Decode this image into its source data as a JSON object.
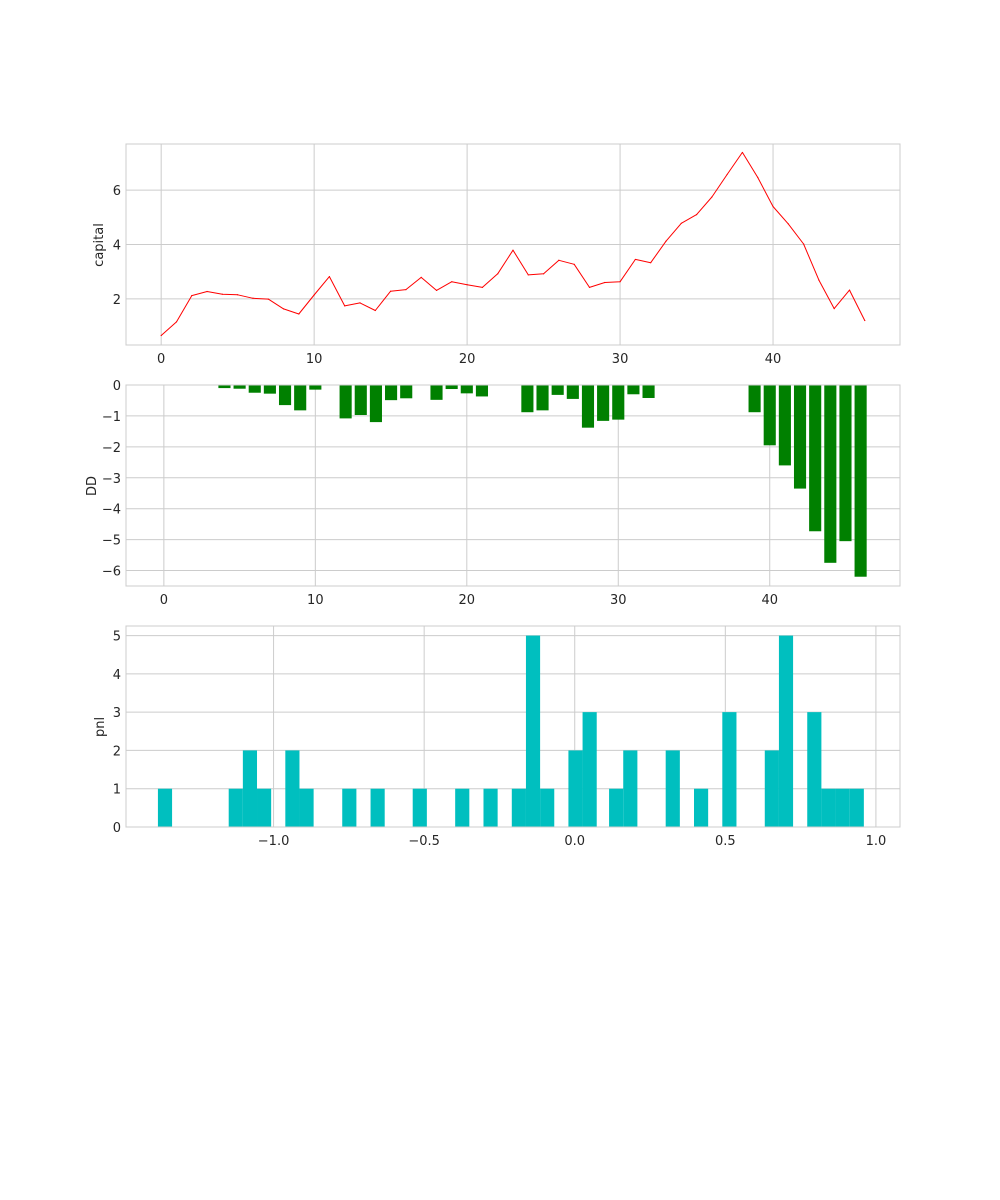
{
  "chart_data": [
    {
      "type": "line",
      "ylabel": "capital",
      "xlim": [
        -2.3,
        48.3
      ],
      "ylim": [
        0.3,
        7.7
      ],
      "xticks": [
        "0",
        "10",
        "20",
        "30",
        "40"
      ],
      "yticks": [
        "2",
        "4",
        "6"
      ],
      "grid": true,
      "color": "#ff0000",
      "x": [
        0,
        1,
        2,
        3,
        4,
        5,
        6,
        7,
        8,
        9,
        10,
        11,
        12,
        13,
        14,
        15,
        16,
        17,
        18,
        19,
        20,
        21,
        22,
        23,
        24,
        25,
        26,
        27,
        28,
        29,
        30,
        31,
        32,
        33,
        34,
        35,
        36,
        37,
        38,
        39,
        40,
        41,
        42,
        43,
        44,
        45,
        46
      ],
      "y": [
        0.65,
        1.15,
        2.12,
        2.27,
        2.17,
        2.15,
        2.02,
        1.99,
        1.63,
        1.44,
        2.14,
        2.82,
        1.74,
        1.85,
        1.57,
        2.28,
        2.34,
        2.79,
        2.31,
        2.63,
        2.52,
        2.42,
        2.92,
        3.79,
        2.88,
        2.92,
        3.42,
        3.27,
        2.42,
        2.6,
        2.63,
        3.45,
        3.33,
        4.12,
        4.78,
        5.1,
        5.75,
        6.58,
        7.39,
        6.47,
        5.4,
        4.76,
        4.02,
        2.69,
        1.64,
        2.32,
        1.2
      ]
    },
    {
      "type": "bar",
      "ylabel": "DD",
      "xlim": [
        -2.5,
        48.6
      ],
      "ylim": [
        -6.5,
        0.0
      ],
      "xticks": [
        "0",
        "10",
        "20",
        "30",
        "40"
      ],
      "yticks": [
        "0",
        "−1",
        "−2",
        "−3",
        "−4",
        "−5",
        "−6"
      ],
      "grid": true,
      "color": "#008000",
      "x": [
        0,
        1,
        2,
        3,
        4,
        5,
        6,
        7,
        8,
        9,
        10,
        11,
        12,
        13,
        14,
        15,
        16,
        17,
        18,
        19,
        20,
        21,
        22,
        23,
        24,
        25,
        26,
        27,
        28,
        29,
        30,
        31,
        32,
        33,
        34,
        35,
        36,
        37,
        38,
        39,
        40,
        41,
        42,
        43,
        44,
        45,
        46
      ],
      "values": [
        0,
        0,
        0,
        0,
        -0.1,
        -0.12,
        -0.25,
        -0.28,
        -0.65,
        -0.82,
        -0.15,
        0,
        -1.08,
        -0.97,
        -1.2,
        -0.49,
        -0.43,
        0,
        -0.48,
        -0.13,
        -0.27,
        -0.37,
        0,
        0,
        -0.88,
        -0.82,
        -0.32,
        -0.45,
        -1.38,
        -1.16,
        -1.12,
        -0.3,
        -0.42,
        0,
        0,
        0,
        0,
        0,
        0,
        -0.88,
        -1.95,
        -2.6,
        -3.35,
        -4.73,
        -5.75,
        -5.05,
        -6.2
      ]
    },
    {
      "type": "bar",
      "ylabel": "pnl",
      "xlim": [
        -1.49,
        1.08
      ],
      "ylim": [
        0,
        5.25
      ],
      "xticks": [
        "−1.0",
        "−0.5",
        "0.0",
        "0.5",
        "1.0"
      ],
      "yticks": [
        "0",
        "1",
        "2",
        "3",
        "4",
        "5"
      ],
      "grid": true,
      "color": "#00bfbf",
      "bins": [
        {
          "x0": -1.384,
          "x1": -1.337,
          "count": 1
        },
        {
          "x0": -1.149,
          "x1": -1.102,
          "count": 1
        },
        {
          "x0": -1.102,
          "x1": -1.055,
          "count": 2
        },
        {
          "x0": -1.055,
          "x1": -1.008,
          "count": 1
        },
        {
          "x0": -0.961,
          "x1": -0.914,
          "count": 2
        },
        {
          "x0": -0.914,
          "x1": -0.867,
          "count": 1
        },
        {
          "x0": -0.772,
          "x1": -0.725,
          "count": 1
        },
        {
          "x0": -0.678,
          "x1": -0.631,
          "count": 1
        },
        {
          "x0": -0.538,
          "x1": -0.491,
          "count": 1
        },
        {
          "x0": -0.397,
          "x1": -0.35,
          "count": 1
        },
        {
          "x0": -0.303,
          "x1": -0.256,
          "count": 1
        },
        {
          "x0": -0.209,
          "x1": -0.162,
          "count": 1
        },
        {
          "x0": -0.162,
          "x1": -0.115,
          "count": 5
        },
        {
          "x0": -0.115,
          "x1": -0.068,
          "count": 1
        },
        {
          "x0": -0.021,
          "x1": 0.026,
          "count": 2
        },
        {
          "x0": 0.026,
          "x1": 0.073,
          "count": 3
        },
        {
          "x0": 0.114,
          "x1": 0.161,
          "count": 1
        },
        {
          "x0": 0.161,
          "x1": 0.208,
          "count": 2
        },
        {
          "x0": 0.302,
          "x1": 0.349,
          "count": 2
        },
        {
          "x0": 0.396,
          "x1": 0.443,
          "count": 1
        },
        {
          "x0": 0.49,
          "x1": 0.537,
          "count": 3
        },
        {
          "x0": 0.631,
          "x1": 0.678,
          "count": 2
        },
        {
          "x0": 0.678,
          "x1": 0.725,
          "count": 5
        },
        {
          "x0": 0.772,
          "x1": 0.819,
          "count": 3
        },
        {
          "x0": 0.819,
          "x1": 0.866,
          "count": 1
        },
        {
          "x0": 0.866,
          "x1": 0.913,
          "count": 1
        },
        {
          "x0": 0.913,
          "x1": 0.96,
          "count": 1
        }
      ]
    }
  ]
}
